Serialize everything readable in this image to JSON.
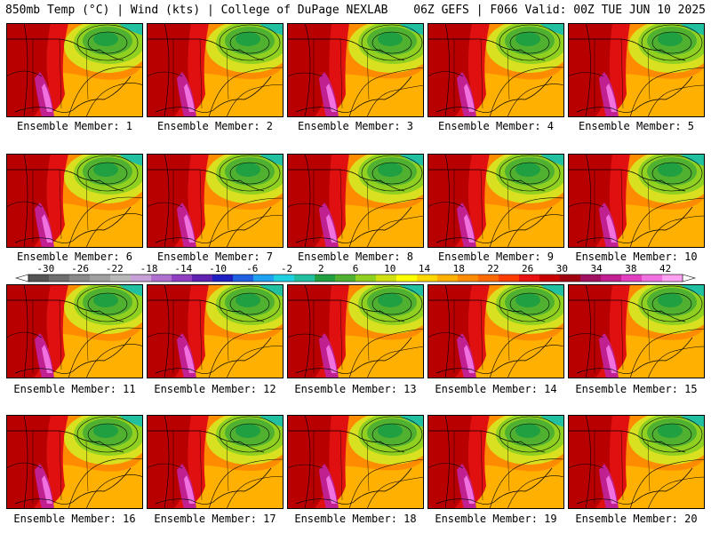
{
  "header": {
    "left": "850mb Temp (°C) | Wind (kts) | College of DuPage NEXLAB",
    "right": "06Z GEFS | F066 Valid: 00Z TUE JUN 10 2025"
  },
  "panels": [
    {
      "label": "Ensemble Member: 1"
    },
    {
      "label": "Ensemble Member: 2"
    },
    {
      "label": "Ensemble Member: 3"
    },
    {
      "label": "Ensemble Member: 4"
    },
    {
      "label": "Ensemble Member: 5"
    },
    {
      "label": "Ensemble Member: 6"
    },
    {
      "label": "Ensemble Member: 7"
    },
    {
      "label": "Ensemble Member: 8"
    },
    {
      "label": "Ensemble Member: 9"
    },
    {
      "label": "Ensemble Member: 10"
    },
    {
      "label": "Ensemble Member: 11"
    },
    {
      "label": "Ensemble Member: 12"
    },
    {
      "label": "Ensemble Member: 13"
    },
    {
      "label": "Ensemble Member: 14"
    },
    {
      "label": "Ensemble Member: 15"
    },
    {
      "label": "Ensemble Member: 16"
    },
    {
      "label": "Ensemble Member: 17"
    },
    {
      "label": "Ensemble Member: 18"
    },
    {
      "label": "Ensemble Member: 19"
    },
    {
      "label": "Ensemble Member: 20"
    }
  ],
  "colorbar": {
    "ticks": [
      "-30",
      "-26",
      "-22",
      "-18",
      "-14",
      "-10",
      "-6",
      "-2",
      "2",
      "6",
      "10",
      "14",
      "18",
      "22",
      "26",
      "30",
      "34",
      "38",
      "42"
    ],
    "colors": [
      "#555555",
      "#6e6e6e",
      "#8a8a8a",
      "#a0a0a0",
      "#b8b8b8",
      "#c8a0d8",
      "#b070d0",
      "#9040c0",
      "#6020b0",
      "#2020c0",
      "#2060e0",
      "#20a0f0",
      "#20d0e0",
      "#20c0a0",
      "#20a040",
      "#50b030",
      "#90d020",
      "#d0e010",
      "#ffff00",
      "#ffd800",
      "#ffb000",
      "#ff8c00",
      "#ff6a00",
      "#ff3c00",
      "#e81010",
      "#c80000",
      "#a00010",
      "#a01060",
      "#c02090",
      "#e040c0",
      "#f070e0",
      "#ffa0f0"
    ]
  }
}
